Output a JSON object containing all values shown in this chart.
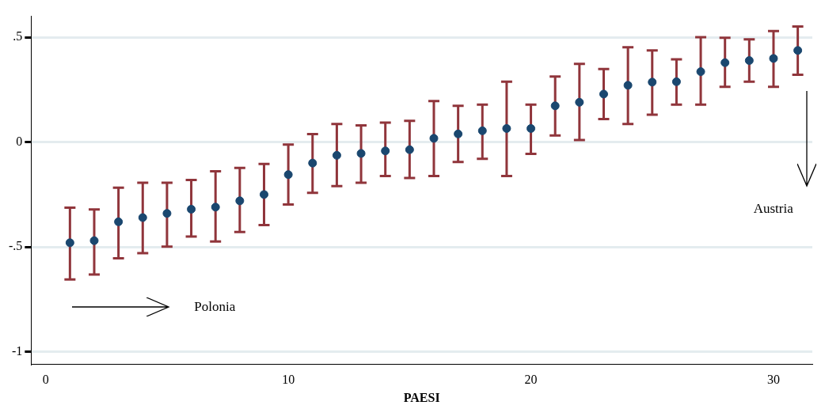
{
  "chart_data": {
    "type": "scatter",
    "xlabel": "PAESI",
    "x": [
      1,
      2,
      3,
      4,
      5,
      6,
      7,
      8,
      9,
      10,
      11,
      12,
      13,
      14,
      15,
      16,
      17,
      18,
      19,
      20,
      21,
      22,
      23,
      24,
      25,
      26,
      27,
      28,
      29,
      30,
      31
    ],
    "series": [
      {
        "color": "#1a476f",
        "values": [
          -0.48,
          -0.47,
          -0.38,
          -0.36,
          -0.34,
          -0.32,
          -0.31,
          -0.28,
          -0.25,
          -0.155,
          -0.1,
          -0.063,
          -0.054,
          -0.042,
          -0.036,
          0.018,
          0.039,
          0.054,
          0.065,
          0.065,
          0.173,
          0.19,
          0.229,
          0.271,
          0.286,
          0.288,
          0.336,
          0.379,
          0.389,
          0.399,
          0.437
        ],
        "errors": [
          [
            -0.655,
            -0.313
          ],
          [
            -0.631,
            -0.321
          ],
          [
            -0.554,
            -0.217
          ],
          [
            -0.53,
            -0.194
          ],
          [
            -0.498,
            -0.194
          ],
          [
            -0.45,
            -0.181
          ],
          [
            -0.474,
            -0.139
          ],
          [
            -0.429,
            -0.123
          ],
          [
            -0.396,
            -0.104
          ],
          [
            -0.298,
            -0.012
          ],
          [
            -0.242,
            0.038
          ],
          [
            -0.21,
            0.086
          ],
          [
            -0.194,
            0.08
          ],
          [
            -0.162,
            0.093
          ],
          [
            -0.171,
            0.101
          ],
          [
            -0.162,
            0.196
          ],
          [
            -0.095,
            0.173
          ],
          [
            -0.08,
            0.179
          ],
          [
            -0.162,
            0.288
          ],
          [
            -0.056,
            0.179
          ],
          [
            0.032,
            0.313
          ],
          [
            0.01,
            0.373
          ],
          [
            0.11,
            0.349
          ],
          [
            0.086,
            0.452
          ],
          [
            0.131,
            0.437
          ],
          [
            0.179,
            0.395
          ],
          [
            0.179,
            0.5
          ],
          [
            0.264,
            0.498
          ],
          [
            0.288,
            0.49
          ],
          [
            0.264,
            0.53
          ],
          [
            0.321,
            0.551
          ]
        ]
      }
    ],
    "xlim": [
      -0.6,
      31.6
    ],
    "xticks": [
      0,
      10,
      20,
      30
    ],
    "ylim": [
      -1.06,
      0.6
    ],
    "yticks": [
      {
        "value": -1,
        "label": "-1"
      },
      {
        "value": -0.5,
        "label": "-.5"
      },
      {
        "value": 0,
        "label": "0"
      },
      {
        "value": 0.5,
        "label": ".5"
      }
    ],
    "grid": "y",
    "legend": false,
    "marker": "circle",
    "annotations": [
      "Polonia",
      "Austria"
    ]
  }
}
